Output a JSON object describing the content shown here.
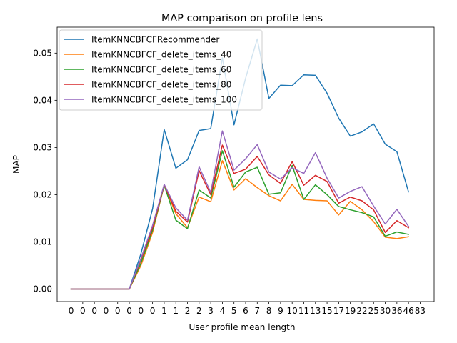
{
  "chart_data": {
    "type": "line",
    "title": "MAP comparison on profile lens",
    "xlabel": "User profile mean length",
    "ylabel": "MAP",
    "x_tick_labels": [
      "0",
      "0",
      "0",
      "0",
      "0",
      "0",
      "0",
      "0",
      "1",
      "1",
      "2",
      "2",
      "3",
      "4",
      "5",
      "6",
      "7",
      "8",
      "9",
      "10",
      "11",
      "13",
      "15",
      "17",
      "19",
      "22",
      "25",
      "30",
      "36",
      "46",
      "83"
    ],
    "y_ticks": [
      0.0,
      0.01,
      0.02,
      0.03,
      0.04,
      0.05
    ],
    "y_tick_labels": [
      "0.00",
      "0.01",
      "0.02",
      "0.03",
      "0.04",
      "0.05"
    ],
    "ylim": [
      -0.00265,
      0.0555
    ],
    "grid": false,
    "legend_position": "upper-left",
    "series": [
      {
        "name": "ItemKNNCBFCFRecommender",
        "color": "#1f77b4",
        "values": [
          0.0,
          0.0,
          0.0,
          0.0,
          0.0,
          0.0,
          0.0075,
          0.017,
          0.0338,
          0.0256,
          0.0274,
          0.0336,
          0.034,
          0.049,
          0.0348,
          0.0447,
          0.053,
          0.0404,
          0.0432,
          0.0431,
          0.0454,
          0.0453,
          0.0415,
          0.0362,
          0.0324,
          0.0333,
          0.035,
          0.0307,
          0.0291,
          0.0206
        ]
      },
      {
        "name": "ItemKNNCBFCF_delete_items_40",
        "color": "#ff7f0e",
        "values": [
          0.0,
          0.0,
          0.0,
          0.0,
          0.0,
          0.0,
          0.005,
          0.012,
          0.022,
          0.016,
          0.013,
          0.0195,
          0.0185,
          0.0272,
          0.021,
          0.0234,
          0.0215,
          0.0198,
          0.0187,
          0.0222,
          0.019,
          0.0188,
          0.0187,
          0.0157,
          0.0186,
          0.0168,
          0.0143,
          0.011,
          0.0107,
          0.0111
        ]
      },
      {
        "name": "ItemKNNCBFCF_delete_items_60",
        "color": "#2ca02c",
        "values": [
          0.0,
          0.0,
          0.0,
          0.0,
          0.0,
          0.0,
          0.0055,
          0.0125,
          0.022,
          0.0146,
          0.0128,
          0.021,
          0.0193,
          0.0293,
          0.0216,
          0.0248,
          0.0258,
          0.0201,
          0.0204,
          0.0262,
          0.019,
          0.0221,
          0.02,
          0.0175,
          0.0168,
          0.0162,
          0.0153,
          0.0112,
          0.0121,
          0.0116
        ]
      },
      {
        "name": "ItemKNNCBFCF_delete_items_80",
        "color": "#d62728",
        "values": [
          0.0,
          0.0,
          0.0,
          0.0,
          0.0,
          0.0,
          0.0062,
          0.013,
          0.0221,
          0.0165,
          0.0142,
          0.0251,
          0.02,
          0.0305,
          0.0245,
          0.0254,
          0.0281,
          0.0242,
          0.0224,
          0.027,
          0.022,
          0.0241,
          0.0228,
          0.0182,
          0.0195,
          0.0187,
          0.0168,
          0.012,
          0.0145,
          0.013
        ]
      },
      {
        "name": "ItemKNNCBFCF_delete_items_100",
        "color": "#9467bd",
        "values": [
          0.0,
          0.0,
          0.0,
          0.0,
          0.0,
          0.0,
          0.0065,
          0.0135,
          0.0222,
          0.0172,
          0.0146,
          0.0259,
          0.0205,
          0.0335,
          0.0252,
          0.0276,
          0.0306,
          0.0248,
          0.0233,
          0.0257,
          0.0245,
          0.0289,
          0.0235,
          0.0193,
          0.0207,
          0.0217,
          0.0176,
          0.0138,
          0.0169,
          0.0133
        ]
      }
    ]
  }
}
